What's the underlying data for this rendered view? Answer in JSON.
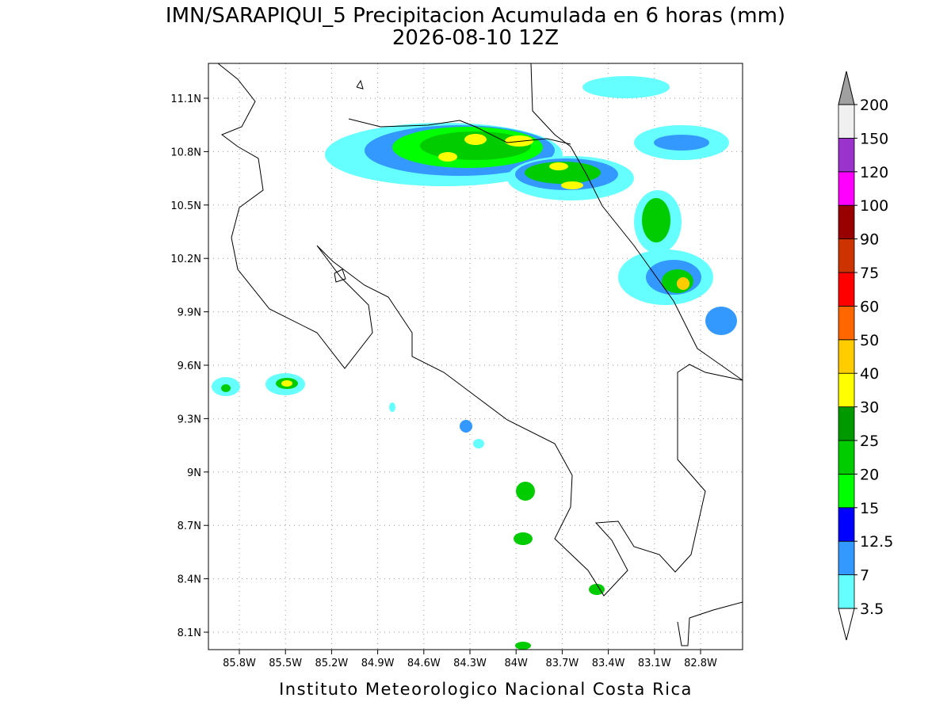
{
  "title": "IMN/SARAPIQUI_5 Precipitacion Acumulada en 6 horas (mm)",
  "subtitle": "2026-08-10 12Z",
  "map": {
    "lon_ticks": [
      "85.8W",
      "85.5W",
      "85.2W",
      "84.9W",
      "84.6W",
      "84.3W",
      "84W",
      "83.7W",
      "83.4W",
      "83.1W",
      "82.8W"
    ],
    "lat_ticks": [
      "11.1N",
      "10.8N",
      "10.5N",
      "10.2N",
      "9.9N",
      "9.6N",
      "9.3N",
      "9N",
      "8.7N",
      "8.4N",
      "8.1N"
    ]
  },
  "colorbar": {
    "levels": [
      3.5,
      7,
      12.5,
      15,
      20,
      25,
      30,
      40,
      50,
      60,
      75,
      90,
      100,
      120,
      150,
      200
    ],
    "colors": [
      "#66ffff",
      "#3399ff",
      "#0000ff",
      "#00ff00",
      "#00cc00",
      "#009900",
      "#ffff00",
      "#ffcc00",
      "#ff6600",
      "#ff0000",
      "#cc3300",
      "#990000",
      "#ff00ff",
      "#9933cc",
      "#f0f0f0"
    ],
    "under_color": "#ffffff",
    "over_color": "#a0a0a0"
  },
  "footer": "Instituto Meteorologico Nacional Costa Rica"
}
